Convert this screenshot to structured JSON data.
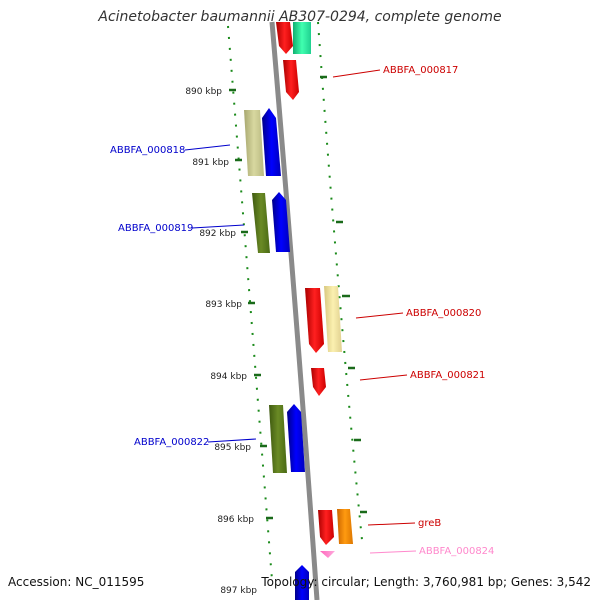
{
  "title": "Acinetobacter baumannii AB307-0294, complete genome",
  "footer": {
    "accession": "Accession: NC_011595",
    "stats": "Topology: circular; Length: 3,760,981 bp; Genes: 3,542"
  },
  "ticks": [
    "890 kbp",
    "891 kbp",
    "892 kbp",
    "893 kbp",
    "894 kbp",
    "895 kbp",
    "896 kbp",
    "897 kbp"
  ],
  "genes": [
    {
      "id": "top-red",
      "label": "",
      "color": "#ff0000",
      "strand": "minus"
    },
    {
      "id": "top-teal",
      "label": "",
      "color": "#22f0a0",
      "strand": "plus"
    },
    {
      "id": "ABBFA_000817",
      "label": "ABBFA_000817",
      "color": "#ff0000",
      "strand": "minus"
    },
    {
      "id": "ABBFA_000818",
      "label": "ABBFA_000818",
      "color": "#0000ff",
      "strand": "plus"
    },
    {
      "id": "ABBFA_000819",
      "label": "ABBFA_000819",
      "color": "#0000ff",
      "strand": "plus"
    },
    {
      "id": "ABBFA_000820",
      "label": "ABBFA_000820",
      "color": "#ff0000",
      "strand": "minus"
    },
    {
      "id": "ABBFA_000821",
      "label": "ABBFA_000821",
      "color": "#ff0000",
      "strand": "minus"
    },
    {
      "id": "ABBFA_000822",
      "label": "ABBFA_000822",
      "color": "#0000ff",
      "strand": "plus"
    },
    {
      "id": "greB",
      "label": "greB",
      "color": "#ff0000",
      "strand": "minus"
    },
    {
      "id": "ABBFA_000824",
      "label": "ABBFA_000824",
      "color": "#ff88cc",
      "strand": "minus"
    },
    {
      "id": "bottom-blue",
      "label": "",
      "color": "#0000ff",
      "strand": "plus"
    }
  ],
  "cogs": [
    {
      "id": "cog-818",
      "color": "#c8c890"
    },
    {
      "id": "cog-819",
      "color": "#5a7a1a"
    },
    {
      "id": "cog-820",
      "color": "#f2e6a0"
    },
    {
      "id": "cog-822",
      "color": "#5a7a1a"
    },
    {
      "id": "cog-greB",
      "color": "#ff8800"
    }
  ]
}
